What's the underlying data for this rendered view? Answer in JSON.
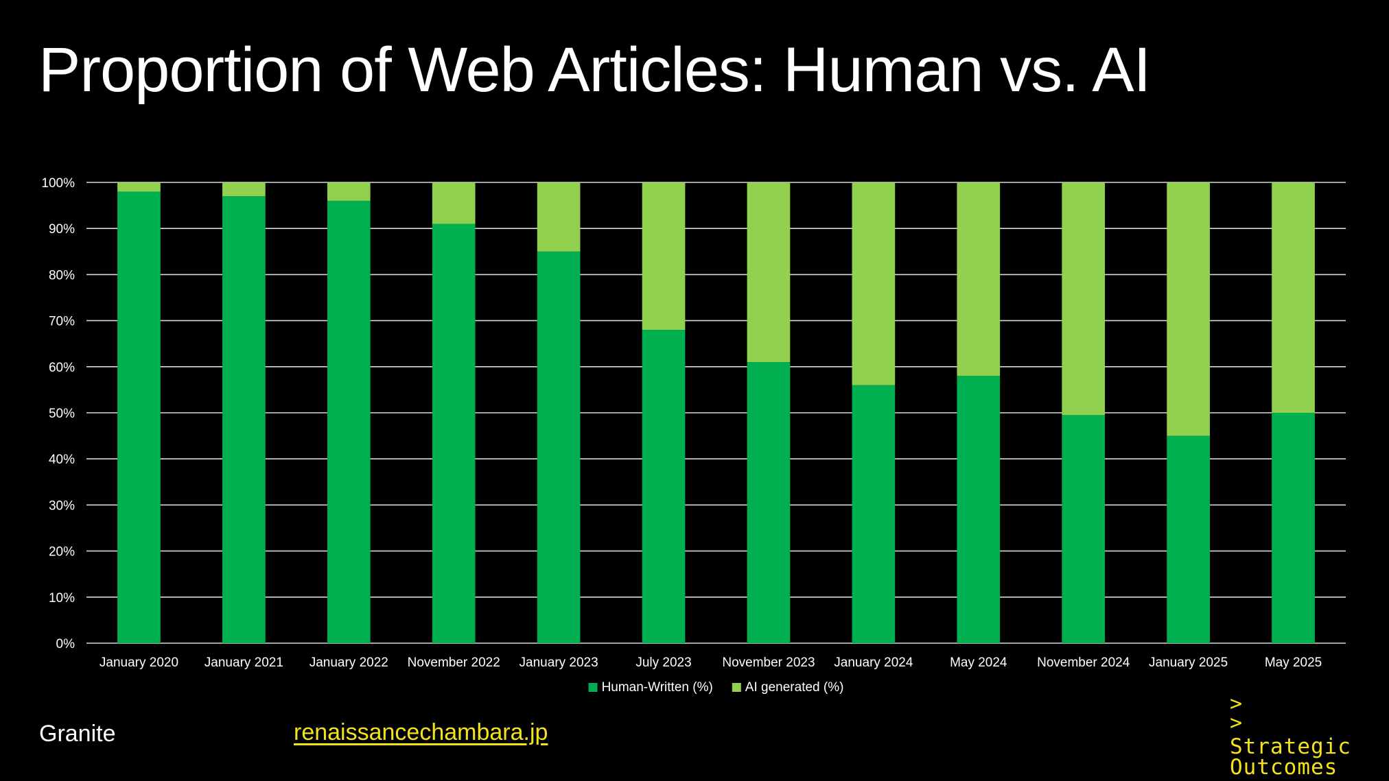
{
  "slide": {
    "title": "Proportion of Web Articles: Human vs. AI",
    "footer_left": "Granite",
    "footer_link": "renaissancechambara.jp",
    "logo": {
      "prompt_1": ">",
      "prompt_2": ">",
      "line_1": "Strategic",
      "line_2": "Outcomes"
    }
  },
  "colors": {
    "background": "#000000",
    "human": "#00b050",
    "ai": "#92d050",
    "accent_yellow": "#f4e21a",
    "text": "#ffffff"
  },
  "chart_data": {
    "type": "bar",
    "stacked": true,
    "categories": [
      "January 2020",
      "January 2021",
      "January 2022",
      "November 2022",
      "January 2023",
      "July 2023",
      "November 2023",
      "January 2024",
      "May 2024",
      "November 2024",
      "January 2025",
      "May 2025"
    ],
    "series": [
      {
        "name": "Human-Written (%)",
        "color": "#00b050",
        "values": [
          98,
          97,
          96,
          91,
          85,
          68,
          61,
          56,
          58,
          49.5,
          45,
          50
        ]
      },
      {
        "name": "AI generated (%)",
        "color": "#92d050",
        "values": [
          2,
          3,
          4,
          9,
          15,
          32,
          39,
          44,
          42,
          50.5,
          55,
          50
        ]
      }
    ],
    "ylim": [
      0,
      100
    ],
    "yticks": [
      "0%",
      "10%",
      "20%",
      "30%",
      "40%",
      "50%",
      "60%",
      "70%",
      "80%",
      "90%",
      "100%"
    ],
    "grid": true,
    "legend": "bottom-center"
  }
}
